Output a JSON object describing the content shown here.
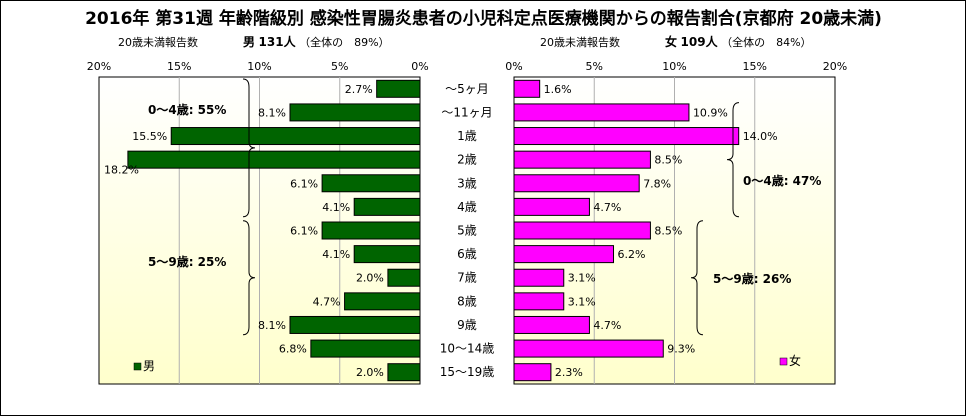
{
  "title": "2016年 第31週 年齢階級別 感染性胃腸炎患者の小児科定点医療機関からの報告割合(京都府 20歳未満)",
  "male_header": {
    "label": "20歳未満報告数",
    "sex": "男",
    "count": "131人",
    "share": "（全体の　89%）"
  },
  "female_header": {
    "label": "20歳未満報告数",
    "sex": "女",
    "count": "109人",
    "share": "（全体の　84%）"
  },
  "colors": {
    "male": "#006400",
    "female": "#ff00ff",
    "panel_top": "#ffffff",
    "panel_bottom": "#ffffcc"
  },
  "chart_data": {
    "type": "bar",
    "orientation": "horizontal-butterfly",
    "categories": [
      "～5ヶ月",
      "～11ヶ月",
      "1歳",
      "2歳",
      "3歳",
      "4歳",
      "5歳",
      "6歳",
      "7歳",
      "8歳",
      "9歳",
      "10～14歳",
      "15～19歳"
    ],
    "series": [
      {
        "name": "男",
        "values": [
          2.7,
          8.1,
          15.5,
          18.2,
          6.1,
          4.1,
          6.1,
          4.1,
          2.0,
          4.7,
          8.1,
          6.8,
          2.0
        ],
        "labels": [
          "2.7%",
          "8.1%",
          "15.5%",
          "18.2%",
          "6.1%",
          "4.1%",
          "6.1%",
          "4.1%",
          "2.0%",
          "4.7%",
          "8.1%",
          "6.8%",
          "2.0%"
        ]
      },
      {
        "name": "女",
        "values": [
          1.6,
          10.9,
          14.0,
          8.5,
          7.8,
          4.7,
          8.5,
          6.2,
          3.1,
          3.1,
          4.7,
          9.3,
          2.3
        ],
        "labels": [
          "1.6%",
          "10.9%",
          "14.0%",
          "8.5%",
          "7.8%",
          "4.7%",
          "8.5%",
          "6.2%",
          "3.1%",
          "3.1%",
          "4.7%",
          "9.3%",
          "2.3%"
        ]
      }
    ],
    "xlim": [
      0,
      20
    ],
    "male_ticks": [
      "20%",
      "15%",
      "10%",
      "5%",
      "0%"
    ],
    "female_ticks": [
      "0%",
      "5%",
      "10%",
      "15%",
      "20%"
    ],
    "annotations": {
      "male_0_4": "0～4歳: 55%",
      "male_5_9": "5～9歳: 25%",
      "female_0_4": "0～4歳: 47%",
      "female_5_9": "5～9歳: 26%"
    },
    "legend": {
      "male": "男",
      "female": "女"
    }
  }
}
